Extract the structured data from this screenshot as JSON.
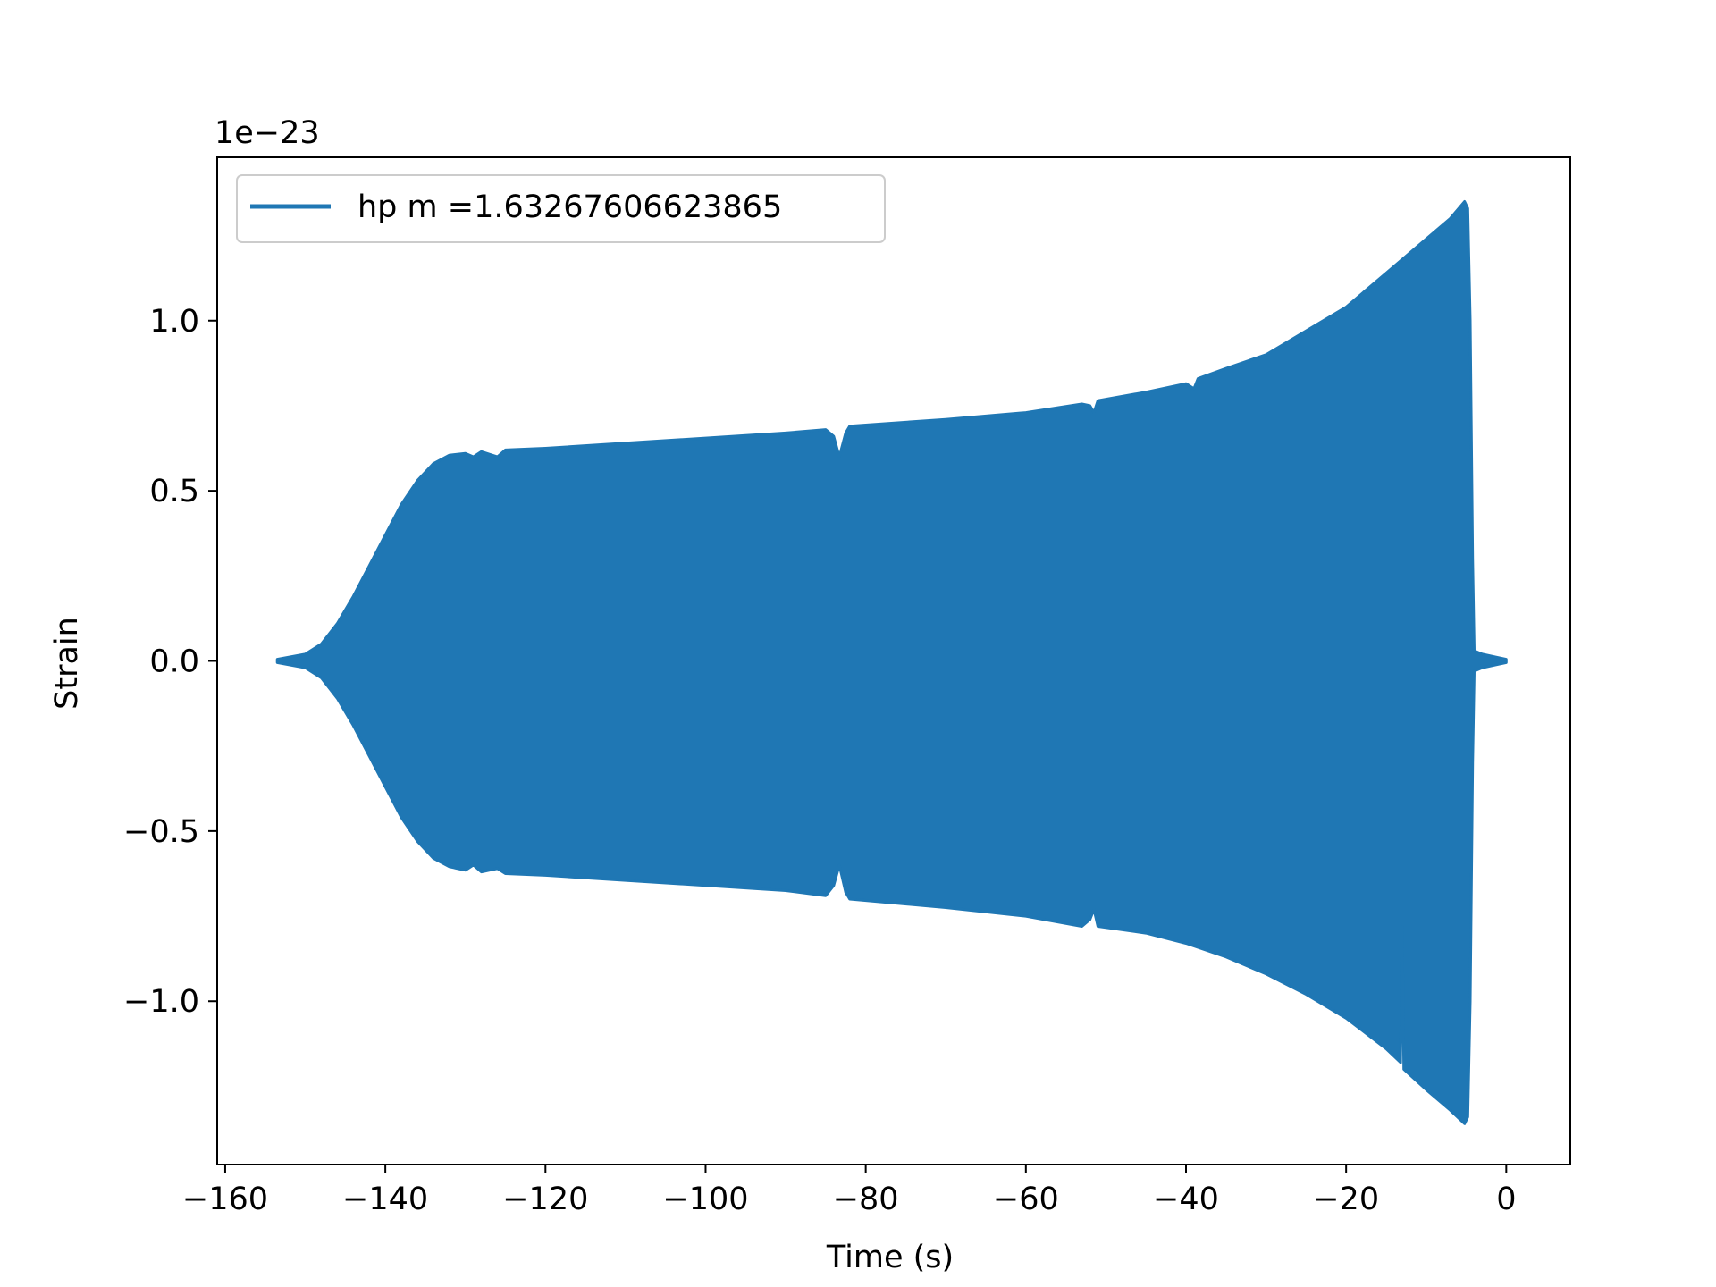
{
  "chart_data": {
    "type": "line",
    "title": "",
    "xlabel": "Time (s)",
    "ylabel": "Strain",
    "y_offset_label": "1e−23",
    "xlim": [
      -161,
      8
    ],
    "ylim": [
      -1.48,
      1.48
    ],
    "x_ticks": [
      -160,
      -140,
      -120,
      -100,
      -80,
      -60,
      -40,
      -20,
      0
    ],
    "x_tick_labels": [
      "−160",
      "−140",
      "−120",
      "−100",
      "−80",
      "−60",
      "−40",
      "−20",
      "0"
    ],
    "y_ticks": [
      -1.0,
      -0.5,
      0.0,
      0.5,
      1.0
    ],
    "y_tick_labels": [
      "−1.0",
      "−0.5",
      "0.0",
      "0.5",
      "1.0"
    ],
    "grid": false,
    "legend_position": "top-left",
    "series": [
      {
        "name": "hp m =1.63267606623865",
        "color": "#1f77b4",
        "upper_envelope": [
          [
            -153.5,
            0.005
          ],
          [
            -150,
            0.02
          ],
          [
            -148,
            0.05
          ],
          [
            -146,
            0.11
          ],
          [
            -144,
            0.19
          ],
          [
            -142,
            0.28
          ],
          [
            -140,
            0.37
          ],
          [
            -138,
            0.46
          ],
          [
            -136,
            0.53
          ],
          [
            -134,
            0.58
          ],
          [
            -132,
            0.605
          ],
          [
            -130,
            0.61
          ],
          [
            -129,
            0.6
          ],
          [
            -128,
            0.615
          ],
          [
            -126,
            0.6
          ],
          [
            -125,
            0.62
          ],
          [
            -120,
            0.625
          ],
          [
            -110,
            0.64
          ],
          [
            -100,
            0.655
          ],
          [
            -90,
            0.67
          ],
          [
            -85,
            0.68
          ],
          [
            -84,
            0.66
          ],
          [
            -83.3,
            0.6
          ],
          [
            -82.5,
            0.67
          ],
          [
            -82,
            0.69
          ],
          [
            -70,
            0.71
          ],
          [
            -60,
            0.73
          ],
          [
            -53,
            0.755
          ],
          [
            -52,
            0.75
          ],
          [
            -51.5,
            0.73
          ],
          [
            -51,
            0.765
          ],
          [
            -45,
            0.79
          ],
          [
            -40,
            0.815
          ],
          [
            -39,
            0.8
          ],
          [
            -38.5,
            0.83
          ],
          [
            -35,
            0.86
          ],
          [
            -30,
            0.9
          ],
          [
            -25,
            0.97
          ],
          [
            -20,
            1.04
          ],
          [
            -15,
            1.14
          ],
          [
            -10,
            1.24
          ],
          [
            -7,
            1.3
          ],
          [
            -5.2,
            1.35
          ],
          [
            -4.8,
            1.33
          ],
          [
            -4.5,
            1.0
          ],
          [
            -4.2,
            0.3
          ],
          [
            -4.0,
            0.03
          ],
          [
            -3,
            0.02
          ],
          [
            -1,
            0.01
          ],
          [
            0,
            0.005
          ]
        ],
        "lower_envelope": [
          [
            -153.5,
            -0.005
          ],
          [
            -150,
            -0.02
          ],
          [
            -148,
            -0.05
          ],
          [
            -146,
            -0.11
          ],
          [
            -144,
            -0.19
          ],
          [
            -142,
            -0.28
          ],
          [
            -140,
            -0.37
          ],
          [
            -138,
            -0.46
          ],
          [
            -136,
            -0.53
          ],
          [
            -134,
            -0.58
          ],
          [
            -132,
            -0.605
          ],
          [
            -130,
            -0.615
          ],
          [
            -129,
            -0.6
          ],
          [
            -128,
            -0.62
          ],
          [
            -126,
            -0.61
          ],
          [
            -125,
            -0.625
          ],
          [
            -120,
            -0.63
          ],
          [
            -110,
            -0.645
          ],
          [
            -100,
            -0.66
          ],
          [
            -90,
            -0.675
          ],
          [
            -85,
            -0.69
          ],
          [
            -84,
            -0.66
          ],
          [
            -83.3,
            -0.6
          ],
          [
            -82.5,
            -0.68
          ],
          [
            -82,
            -0.7
          ],
          [
            -70,
            -0.725
          ],
          [
            -60,
            -0.75
          ],
          [
            -53,
            -0.78
          ],
          [
            -52,
            -0.76
          ],
          [
            -51.5,
            -0.73
          ],
          [
            -51,
            -0.78
          ],
          [
            -45,
            -0.8
          ],
          [
            -40,
            -0.83
          ],
          [
            -35,
            -0.87
          ],
          [
            -30,
            -0.92
          ],
          [
            -25,
            -0.98
          ],
          [
            -20,
            -1.05
          ],
          [
            -15,
            -1.14
          ],
          [
            -13.2,
            -1.18
          ],
          [
            -13,
            -0.78
          ],
          [
            -12.8,
            -1.2
          ],
          [
            -10,
            -1.26
          ],
          [
            -7,
            -1.32
          ],
          [
            -5.2,
            -1.36
          ],
          [
            -4.8,
            -1.34
          ],
          [
            -4.5,
            -1.0
          ],
          [
            -4.2,
            -0.3
          ],
          [
            -4.0,
            -0.03
          ],
          [
            -3,
            -0.02
          ],
          [
            -1,
            -0.01
          ],
          [
            0,
            -0.005
          ]
        ]
      }
    ]
  }
}
